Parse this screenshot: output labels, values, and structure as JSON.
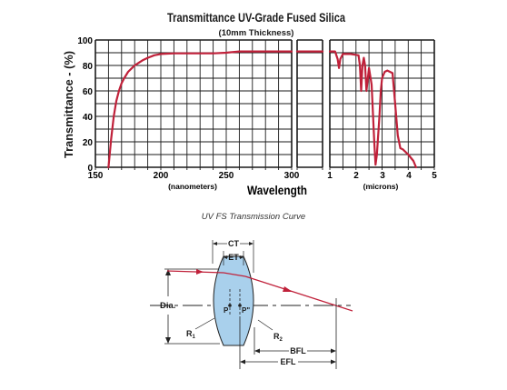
{
  "chart_data": {
    "type": "line",
    "title": "Transmittance UV-Grade Fused Silica",
    "subtitle": "(10mm Thickness)",
    "ylabel": "Transmittance - (%)",
    "xlabel": "Wavelength",
    "ylim": [
      0,
      100
    ],
    "yticks": [
      "0",
      "20",
      "40",
      "60",
      "80",
      "100"
    ],
    "grid": true,
    "line_color": "#c0213a",
    "panels": [
      {
        "name": "nanometers",
        "xlim": [
          150,
          300
        ],
        "xticks": [
          "150",
          "200",
          "250",
          "300"
        ],
        "unit_label": "(nanometers)",
        "x": [
          160,
          162,
          164,
          166,
          168,
          170,
          172,
          175,
          178,
          180,
          183,
          186,
          190,
          195,
          200,
          210,
          220,
          240,
          250,
          260,
          280,
          300
        ],
        "y": [
          0,
          22,
          40,
          52,
          60,
          66,
          70,
          75,
          78,
          80,
          82,
          84,
          86,
          88,
          89,
          89.5,
          89.5,
          89.5,
          90,
          91,
          91,
          91
        ]
      },
      {
        "name": "near-ir-nm",
        "xlim": [
          300,
          335
        ],
        "xticks": [],
        "x": [
          300,
          310,
          320,
          335
        ],
        "y": [
          91,
          91,
          91,
          91
        ]
      },
      {
        "name": "microns",
        "xlim": [
          1,
          5
        ],
        "xticks": [
          "1",
          "2",
          "3",
          "4",
          "5"
        ],
        "unit_label": "(microns)",
        "x": [
          1.0,
          1.2,
          1.3,
          1.35,
          1.4,
          1.5,
          1.8,
          2.1,
          2.15,
          2.2,
          2.25,
          2.3,
          2.35,
          2.4,
          2.5,
          2.6,
          2.7,
          2.75,
          2.8,
          2.9,
          2.95,
          3.0,
          3.1,
          3.2,
          3.4,
          3.5,
          3.6,
          3.7,
          3.8,
          4.0,
          4.2,
          4.3
        ],
        "y": [
          91,
          91,
          85,
          78,
          85,
          89,
          89,
          88,
          80,
          60,
          80,
          86,
          80,
          60,
          78,
          65,
          20,
          2,
          10,
          40,
          60,
          70,
          75,
          76,
          74,
          50,
          25,
          15,
          14,
          10,
          5,
          0
        ]
      }
    ]
  },
  "caption": "UV FS Transmission Curve",
  "diagram": {
    "labels": {
      "ct": "CT",
      "et": "ET",
      "dia": "Dia.",
      "p": "P",
      "p_double": "P\"",
      "r1": "R",
      "r1_sub": "1",
      "r2": "R",
      "r2_sub": "2",
      "bfl": "BFL",
      "efl": "EFL"
    },
    "lens_fill": "#a9d0ec",
    "ray_color": "#c0213a"
  }
}
